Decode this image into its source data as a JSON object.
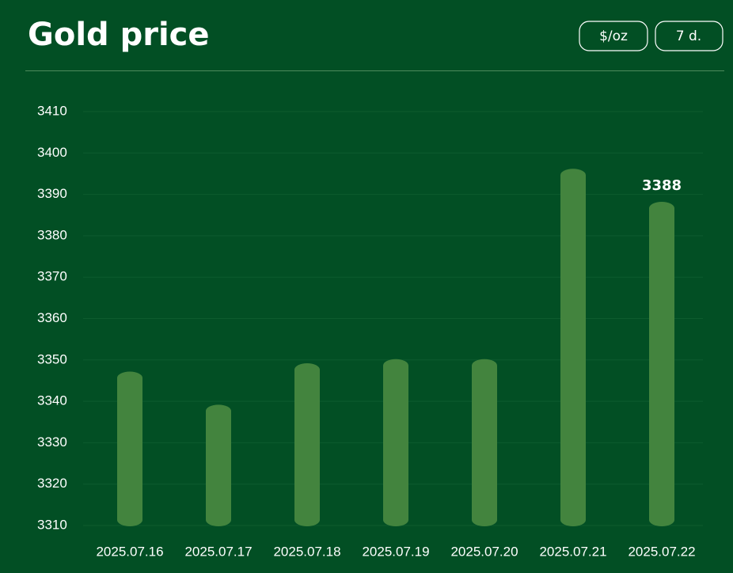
{
  "chart_data": {
    "type": "bar",
    "title": "Gold price",
    "controls": [
      "$/oz",
      "7 d."
    ],
    "categories": [
      "2025.07.16",
      "2025.07.17",
      "2025.07.18",
      "2025.07.19",
      "2025.07.20",
      "2025.07.21",
      "2025.07.22"
    ],
    "values": [
      3347,
      3339,
      3349,
      3350,
      3350,
      3396,
      3388
    ],
    "color": "#43843e",
    "ylim": [
      3310,
      3410
    ],
    "yticks": [
      3310,
      3320,
      3330,
      3340,
      3350,
      3360,
      3370,
      3380,
      3390,
      3400,
      3410
    ],
    "grid": true,
    "data_labels": "last"
  }
}
